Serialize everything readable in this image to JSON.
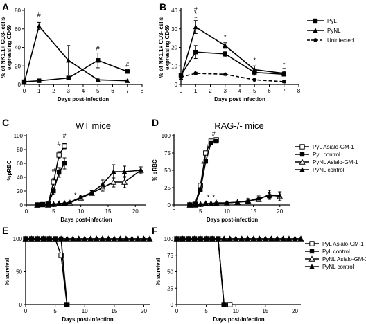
{
  "chart_data": [
    {
      "panel": "A",
      "type": "line",
      "ylabel": "% of NK1.1+ CD3- cells expressing CD69",
      "xlabel": "Days post-infection",
      "xlim": [
        0,
        8
      ],
      "ylim": [
        0,
        80
      ],
      "xticks": [
        0,
        1,
        2,
        3,
        4,
        5,
        6,
        7,
        8
      ],
      "yticks": [
        0,
        20,
        40,
        60,
        80
      ],
      "series": [
        {
          "name": "PyL",
          "marker": "square",
          "x": [
            0,
            1,
            3,
            5,
            7
          ],
          "y": [
            3,
            4,
            7,
            26,
            14
          ],
          "err": [
            0,
            0,
            2,
            8,
            1.5
          ]
        },
        {
          "name": "PyNL",
          "marker": "triangle",
          "x": [
            0,
            1,
            3,
            5,
            7
          ],
          "y": [
            2,
            63,
            26,
            5,
            4
          ],
          "err": [
            0,
            4,
            16,
            1,
            1
          ]
        }
      ],
      "annotations": [
        {
          "text": "#",
          "x": 1,
          "y": 73
        },
        {
          "text": "#",
          "x": 5,
          "y": 37
        },
        {
          "text": "#",
          "x": 7,
          "y": 19
        }
      ]
    },
    {
      "panel": "B",
      "type": "line",
      "ylabel": "% of NK1.1+ CD3- cells expressing CD69",
      "xlabel": "Days post infection",
      "xlim": [
        0,
        8
      ],
      "ylim": [
        0,
        40
      ],
      "xticks": [
        0,
        1,
        2,
        3,
        4,
        5,
        6,
        7,
        8
      ],
      "yticks": [
        0,
        10,
        20,
        30,
        40
      ],
      "series": [
        {
          "name": "PyL",
          "marker": "square",
          "dash": false,
          "x": [
            0,
            1,
            3,
            5,
            7
          ],
          "y": [
            5,
            17.5,
            16.5,
            6.5,
            5.5
          ],
          "err": [
            0.5,
            3.5,
            1.5,
            1.5,
            1
          ]
        },
        {
          "name": "PyNL",
          "marker": "triangle",
          "dash": false,
          "x": [
            0,
            1,
            3,
            5,
            7
          ],
          "y": [
            3.5,
            31,
            21,
            8,
            6
          ],
          "err": [
            0.5,
            3.5,
            1.5,
            2,
            1
          ]
        },
        {
          "name": "Uninfected",
          "marker": "star",
          "dash": true,
          "x": [
            0,
            1,
            3,
            5,
            7
          ],
          "y": [
            4,
            6,
            5.5,
            2.5,
            1.5
          ],
          "err": [
            0,
            0.5,
            0.5,
            0.5,
            0.5
          ]
        }
      ],
      "annotations": [
        {
          "text": "#",
          "x": 1,
          "y": 39.5
        },
        {
          "text": "*",
          "x": 1,
          "y": 37
        },
        {
          "text": "~",
          "x": 1,
          "y": 35.2
        },
        {
          "text": "*",
          "x": 3,
          "y": 24.5
        },
        {
          "text": "*",
          "x": 5,
          "y": 12
        },
        {
          "text": "~",
          "x": 5,
          "y": 10
        },
        {
          "text": "*",
          "x": 7,
          "y": 9.5
        },
        {
          "text": "~",
          "x": 7,
          "y": 7.6
        }
      ]
    },
    {
      "panel": "C",
      "type": "line",
      "title": "WT mice",
      "ylabel": "%pRBC",
      "xlabel": "Days post-infection",
      "xlim": [
        0,
        22
      ],
      "ylim": [
        0,
        100
      ],
      "xticks": [
        0,
        5,
        10,
        15,
        20
      ],
      "yticks": [
        0,
        20,
        40,
        60,
        80,
        100
      ],
      "series": [
        {
          "name": "PyL Asialo-GM-1",
          "marker": "open-square",
          "x": [
            2,
            3,
            4,
            5,
            6,
            7
          ],
          "y": [
            0,
            0.5,
            2,
            33,
            72,
            85
          ],
          "err": [
            0,
            0,
            0.5,
            5,
            5,
            4
          ]
        },
        {
          "name": "PyL control",
          "marker": "filled-square",
          "x": [
            2,
            3,
            4,
            5,
            6,
            7
          ],
          "y": [
            0,
            0.5,
            1.5,
            20,
            47,
            60
          ],
          "err": [
            0,
            0,
            0.5,
            5,
            7,
            8
          ]
        },
        {
          "name": "PyNL Asialo-GM-1",
          "marker": "open-triangle",
          "x": [
            2,
            4,
            5,
            6,
            7,
            8,
            10,
            12,
            14,
            16,
            18,
            21
          ],
          "y": [
            0,
            0,
            1,
            2,
            2.5,
            3,
            10,
            17,
            25,
            33,
            33,
            50
          ],
          "err": [
            0,
            0,
            0,
            0.5,
            0.5,
            1,
            2,
            3,
            5,
            7,
            8,
            5
          ]
        },
        {
          "name": "PyNL control",
          "marker": "filled-triangle",
          "x": [
            2,
            4,
            5,
            6,
            7,
            8,
            10,
            12,
            14,
            16,
            18,
            21
          ],
          "y": [
            0,
            0,
            1,
            2,
            2.5,
            4,
            11,
            18,
            30,
            48,
            48,
            50
          ],
          "err": [
            0,
            0,
            0,
            0.5,
            0.5,
            1,
            2,
            3,
            6,
            10,
            8,
            5
          ]
        }
      ],
      "annotations": [
        {
          "text": "#",
          "x": 5,
          "y": 47
        },
        {
          "text": "#",
          "x": 6,
          "y": 85
        },
        {
          "text": "#",
          "x": 7,
          "y": 97
        },
        {
          "text": "*",
          "x": 9,
          "y": 11
        }
      ]
    },
    {
      "panel": "D",
      "type": "line",
      "title": "RAG-/-  mice",
      "ylabel": "% pRBC",
      "xlabel": "Days post-infection",
      "xlim": [
        0,
        22
      ],
      "ylim": [
        0,
        100
      ],
      "xticks": [
        0,
        5,
        10,
        15,
        20
      ],
      "yticks": [
        0,
        25,
        50,
        75,
        100
      ],
      "series": [
        {
          "name": "PyL Asialo-GM-1",
          "marker": "open-square",
          "x": [
            3,
            4,
            5,
            6,
            7,
            8
          ],
          "y": [
            0,
            1,
            28,
            75,
            92,
            94
          ],
          "err": [
            0,
            0,
            3,
            3,
            2,
            2
          ]
        },
        {
          "name": "PyL control",
          "marker": "filled-square",
          "x": [
            3,
            4,
            5,
            6,
            7,
            8
          ],
          "y": [
            0,
            1,
            22,
            63,
            90,
            92
          ],
          "err": [
            0,
            0,
            3,
            3,
            2,
            2
          ]
        },
        {
          "name": "PyNL Asialo-GM-1",
          "marker": "open-triangle",
          "x": [
            3,
            4,
            5,
            6,
            7,
            8,
            10,
            12,
            14,
            16,
            18,
            20
          ],
          "y": [
            0,
            0,
            1,
            2,
            2,
            3,
            3,
            4,
            6,
            8,
            15,
            12
          ],
          "err": [
            0,
            0,
            0,
            0,
            0,
            0.5,
            1,
            1,
            3,
            3,
            6,
            6
          ]
        },
        {
          "name": "PyNL control",
          "marker": "filled-triangle",
          "x": [
            3,
            4,
            5,
            6,
            7,
            8,
            10,
            12,
            14,
            16,
            18,
            20
          ],
          "y": [
            0,
            0,
            1,
            2,
            2,
            2,
            3,
            4,
            5,
            10,
            13,
            14
          ],
          "err": [
            0,
            0,
            0,
            0,
            0,
            0.5,
            1,
            1,
            2,
            3,
            5,
            5
          ]
        }
      ],
      "annotations": [
        {
          "text": "#",
          "x": 5.5,
          "y": 57
        },
        {
          "text": "#",
          "x": 6.5,
          "y": 82
        },
        {
          "text": "#",
          "x": 7.5,
          "y": 100
        },
        {
          "text": "*",
          "x": 6.5,
          "y": 8
        },
        {
          "text": "*",
          "x": 7.5,
          "y": 8
        }
      ]
    },
    {
      "panel": "E",
      "type": "line",
      "ylabel": "% survival",
      "xlabel": "Days post-infection",
      "xlim": [
        0,
        21
      ],
      "ylim": [
        0,
        100
      ],
      "xticks": [
        0,
        5,
        10,
        15,
        20
      ],
      "yticks": [
        0,
        50,
        100
      ],
      "series": [
        {
          "name": "PyL Asialo-GM-1",
          "marker": "open-square",
          "x": [
            0,
            1,
            2,
            3,
            4,
            5,
            6,
            7
          ],
          "y": [
            100,
            100,
            100,
            100,
            100,
            100,
            75,
            0
          ]
        },
        {
          "name": "PyL control",
          "marker": "filled-square",
          "x": [
            0,
            1,
            2,
            3,
            4,
            5,
            6,
            7
          ],
          "y": [
            100,
            100,
            100,
            100,
            100,
            100,
            100,
            0
          ]
        },
        {
          "name": "PyNL Asialo-GM-1",
          "marker": "open-triangle",
          "x": [
            0,
            1,
            2,
            3,
            4,
            5,
            6,
            7,
            8,
            9,
            10,
            11,
            12,
            13,
            14,
            15,
            16,
            17,
            18,
            19,
            20,
            21
          ],
          "y": [
            100,
            100,
            100,
            100,
            100,
            100,
            100,
            100,
            100,
            100,
            100,
            100,
            100,
            100,
            100,
            100,
            100,
            100,
            100,
            100,
            100,
            100
          ]
        },
        {
          "name": "PyNL control",
          "marker": "filled-triangle",
          "x": [
            0,
            1,
            2,
            3,
            4,
            5,
            6,
            7,
            8,
            9,
            10,
            11,
            12,
            13,
            14,
            15,
            16,
            17,
            18,
            19,
            20,
            21
          ],
          "y": [
            100,
            100,
            100,
            100,
            100,
            100,
            100,
            100,
            100,
            100,
            100,
            100,
            100,
            100,
            100,
            100,
            100,
            100,
            100,
            100,
            100,
            100
          ]
        }
      ]
    },
    {
      "panel": "F",
      "type": "line",
      "ylabel": "% survival",
      "xlabel": "Days post-infection",
      "xlim": [
        0,
        21
      ],
      "ylim": [
        0,
        100
      ],
      "xticks": [
        0,
        5,
        10,
        15,
        20
      ],
      "yticks": [
        0,
        25,
        50,
        75,
        100
      ],
      "series": [
        {
          "name": "PyL Asialo-GM-1",
          "marker": "open-square",
          "x": [
            0,
            1,
            2,
            3,
            4,
            5,
            6,
            7,
            8,
            9
          ],
          "y": [
            100,
            100,
            100,
            100,
            100,
            100,
            100,
            100,
            0,
            0
          ]
        },
        {
          "name": "PyL control",
          "marker": "filled-square",
          "x": [
            0,
            1,
            2,
            3,
            4,
            5,
            6,
            7,
            8
          ],
          "y": [
            100,
            100,
            100,
            100,
            100,
            100,
            100,
            100,
            0
          ]
        },
        {
          "name": "PyNL Asialo-GM-1",
          "marker": "open-triangle",
          "x": [
            0,
            1,
            2,
            3,
            4,
            5,
            6,
            7,
            8,
            9,
            10,
            11,
            12,
            13,
            14,
            15,
            16,
            17,
            18,
            19,
            20,
            21
          ],
          "y": [
            100,
            100,
            100,
            100,
            100,
            100,
            100,
            100,
            100,
            100,
            100,
            100,
            100,
            100,
            100,
            100,
            100,
            100,
            100,
            100,
            100,
            100
          ]
        },
        {
          "name": "PyNL control",
          "marker": "filled-triangle",
          "x": [
            0,
            1,
            2,
            3,
            4,
            5,
            6,
            7,
            8,
            9,
            10,
            11,
            12,
            13,
            14,
            15,
            16,
            17,
            18,
            19,
            20,
            21
          ],
          "y": [
            100,
            100,
            100,
            100,
            100,
            100,
            100,
            100,
            100,
            100,
            100,
            100,
            100,
            100,
            100,
            100,
            100,
            100,
            100,
            100,
            100,
            100
          ]
        }
      ]
    }
  ]
}
